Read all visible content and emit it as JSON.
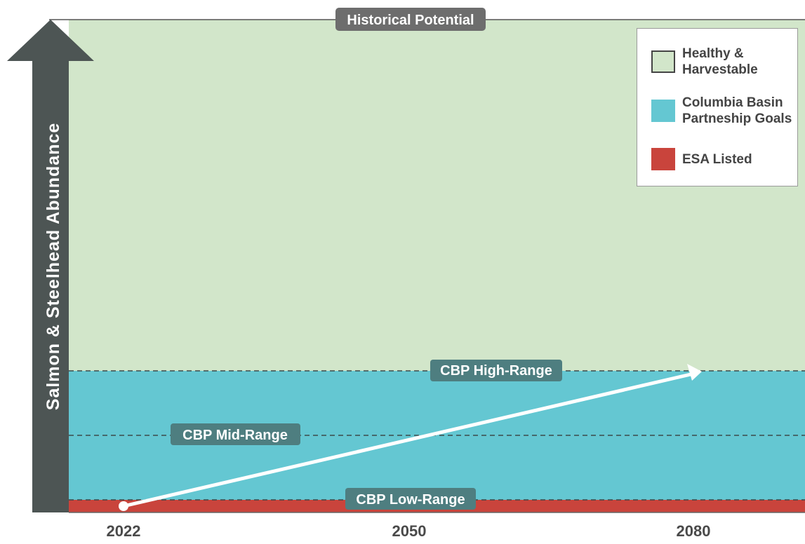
{
  "chart_data": {
    "type": "area",
    "ylabel": "Salmon & Steelhead Abundance",
    "x_ticks": [
      "2022",
      "2050",
      "2080"
    ],
    "regions": [
      {
        "name": "Healthy &\nHarvestable",
        "color": "#d2e6ca",
        "y_from": "CBP High-Range",
        "y_to": "Historical Potential"
      },
      {
        "name": "Columbia Basin\nPartneship Goals",
        "color": "#64c7d2",
        "y_from": "CBP Low-Range",
        "y_to": "CBP High-Range"
      },
      {
        "name": "ESA Listed",
        "color": "#c9443c",
        "y_from": "0",
        "y_to": "CBP Low-Range"
      }
    ],
    "reference_lines": [
      {
        "label": "Historical Potential",
        "style": "solid"
      },
      {
        "label": "CBP High-Range",
        "style": "dashed"
      },
      {
        "label": "CBP Mid-Range",
        "style": "dashed"
      },
      {
        "label": "CBP Low-Range",
        "style": "dashed"
      }
    ],
    "trend_arrow": {
      "from": {
        "x": "2022",
        "y": "CBP Low-Range"
      },
      "to": {
        "x": "2080",
        "y": "CBP High-Range"
      }
    },
    "legend_position": "top-right",
    "colors": {
      "axis_arrow": "#4d5554",
      "label_box": "#4e7e80",
      "label_box_top": "#6d6d6d",
      "arrow": "#ffffff",
      "tick_text": "#4a4a4a"
    }
  }
}
